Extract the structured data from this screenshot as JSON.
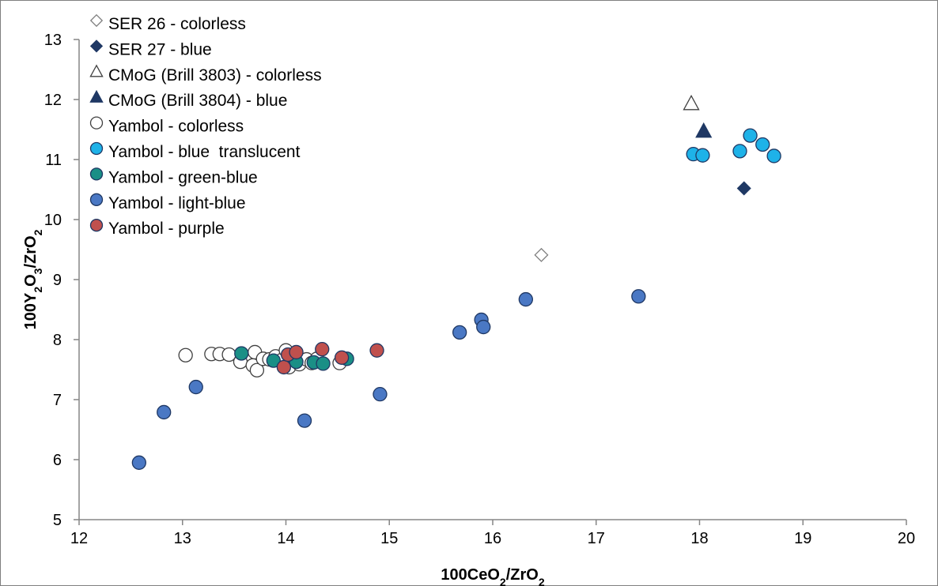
{
  "chart_data": {
    "type": "scatter",
    "title": "",
    "xlabel": {
      "base": "100CeO",
      "sub1": "2",
      "mid": "/ZrO",
      "sub2": "2"
    },
    "ylabel": {
      "base": "100Y",
      "sub1": "2",
      "mid": "O",
      "sub2": "3",
      "mid2": "/ZrO",
      "sub3": "2"
    },
    "xlim": [
      12,
      20
    ],
    "ylim": [
      5,
      13
    ],
    "x_ticks": [
      12,
      13,
      14,
      15,
      16,
      17,
      18,
      19,
      20
    ],
    "y_ticks": [
      5,
      6,
      7,
      8,
      9,
      10,
      11,
      12,
      13
    ],
    "grid": false,
    "legend_position": "top-left",
    "series": [
      {
        "name": "SER 26 - colorless",
        "marker": "diamond",
        "fill": "#ffffff",
        "stroke": "#7f7f7f",
        "points": [
          [
            16.47,
            9.41
          ]
        ]
      },
      {
        "name": "SER 27 - blue",
        "marker": "diamond",
        "fill": "#1f3864",
        "stroke": "#1f3864",
        "points": [
          [
            18.43,
            10.52
          ]
        ]
      },
      {
        "name": "CMoG (Brill 3803) - colorless",
        "marker": "triangle",
        "fill": "#ffffff",
        "stroke": "#404040",
        "points": [
          [
            17.92,
            11.93
          ]
        ]
      },
      {
        "name": "CMoG (Brill 3804) - blue",
        "marker": "triangle",
        "fill": "#1f3864",
        "stroke": "#1f3864",
        "points": [
          [
            18.04,
            11.47
          ]
        ]
      },
      {
        "name": "Yambol - colorless",
        "marker": "circle",
        "fill": "#ffffff",
        "stroke": "#404040",
        "points": [
          [
            13.03,
            7.74
          ],
          [
            13.28,
            7.76
          ],
          [
            13.36,
            7.76
          ],
          [
            13.45,
            7.75
          ],
          [
            13.56,
            7.63
          ],
          [
            13.68,
            7.57
          ],
          [
            13.7,
            7.79
          ],
          [
            13.72,
            7.49
          ],
          [
            13.78,
            7.68
          ],
          [
            13.84,
            7.67
          ],
          [
            13.9,
            7.72
          ],
          [
            13.96,
            7.66
          ],
          [
            14.0,
            7.82
          ],
          [
            14.03,
            7.54
          ],
          [
            14.08,
            7.7
          ],
          [
            14.13,
            7.59
          ],
          [
            14.2,
            7.67
          ],
          [
            14.25,
            7.61
          ],
          [
            14.3,
            7.68
          ],
          [
            14.52,
            7.61
          ]
        ]
      },
      {
        "name": "Yambol - blue  translucent",
        "marker": "circle",
        "fill": "#1eb2e8",
        "stroke": "#1f3864",
        "points": [
          [
            17.94,
            11.09
          ],
          [
            18.03,
            11.07
          ],
          [
            18.39,
            11.14
          ],
          [
            18.49,
            11.4
          ],
          [
            18.61,
            11.25
          ],
          [
            18.72,
            11.06
          ]
        ]
      },
      {
        "name": "Yambol - green-blue",
        "marker": "circle",
        "fill": "#1a8f86",
        "stroke": "#1f3864",
        "points": [
          [
            13.57,
            7.77
          ],
          [
            13.88,
            7.65
          ],
          [
            14.1,
            7.63
          ],
          [
            14.27,
            7.62
          ],
          [
            14.36,
            7.6
          ],
          [
            14.59,
            7.68
          ]
        ]
      },
      {
        "name": "Yambol - light-blue",
        "marker": "circle",
        "fill": "#4a78c4",
        "stroke": "#1f3864",
        "points": [
          [
            12.58,
            5.95
          ],
          [
            12.82,
            6.79
          ],
          [
            13.13,
            7.21
          ],
          [
            14.18,
            6.65
          ],
          [
            14.91,
            7.09
          ],
          [
            15.68,
            8.12
          ],
          [
            15.89,
            8.33
          ],
          [
            15.91,
            8.21
          ],
          [
            16.32,
            8.67
          ],
          [
            17.41,
            8.72
          ]
        ]
      },
      {
        "name": "Yambol - purple",
        "marker": "circle",
        "fill": "#c0504d",
        "stroke": "#1f3864",
        "points": [
          [
            13.98,
            7.54
          ],
          [
            14.02,
            7.75
          ],
          [
            14.1,
            7.79
          ],
          [
            14.35,
            7.84
          ],
          [
            14.54,
            7.7
          ],
          [
            14.88,
            7.82
          ]
        ]
      }
    ]
  }
}
